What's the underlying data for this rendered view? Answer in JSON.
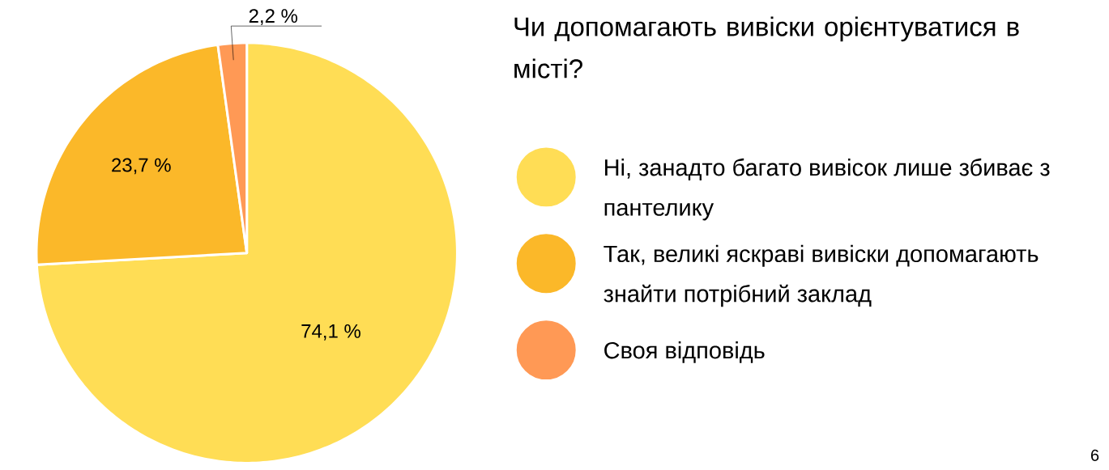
{
  "chart_data": {
    "type": "pie",
    "title": "Чи допомагають вивіски орієнтуватися в місті?",
    "categories": [
      "Ні, занадто багато вивісок лише збиває з пантелику",
      "Так, великі яскраві вивіски допомагають знайти потрібний заклад",
      "Своя відповідь"
    ],
    "values": [
      74.1,
      23.7,
      2.2
    ],
    "colors": [
      "#ffdd55",
      "#fbb829",
      "#ff9955"
    ],
    "value_labels": [
      "74,1 %",
      "23,7 %",
      "2,2 %"
    ],
    "legend": "right",
    "annotations": [
      "6"
    ]
  }
}
